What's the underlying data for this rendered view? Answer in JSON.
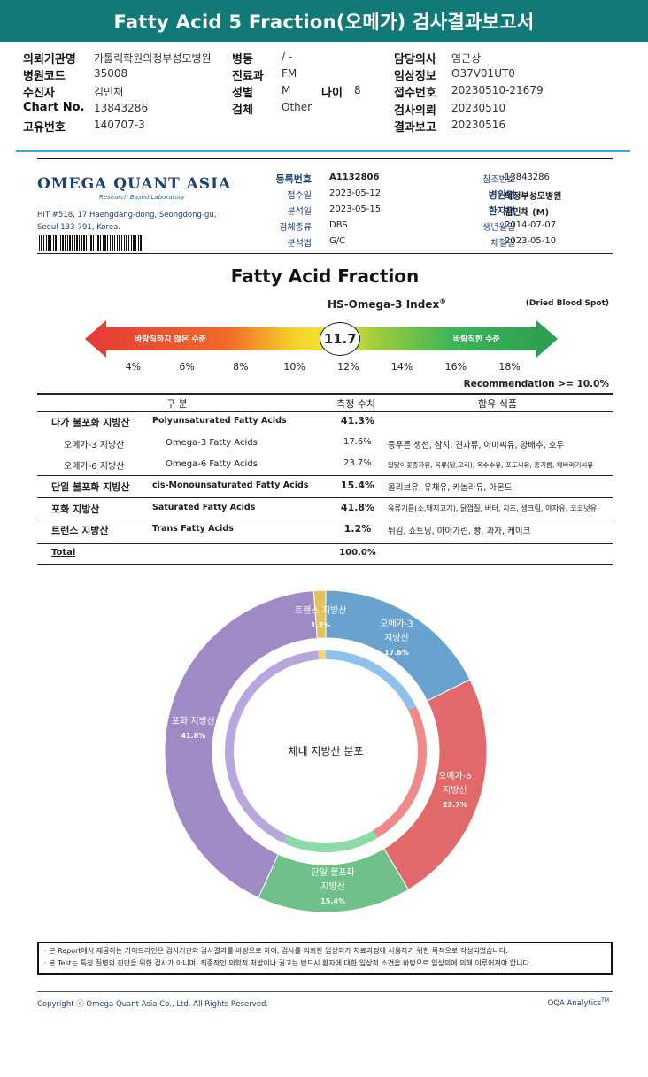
{
  "title": "Fatty Acid 5 Fraction(오메가) 검사결과보고서",
  "patient": {
    "row1": [
      {
        "label": "의뢰기관명",
        "value": "가톨릭학원의정부성모병원"
      },
      {
        "label": "병동",
        "value": "/ -"
      },
      {
        "label": "담당의사",
        "value": "염근상"
      }
    ],
    "row2": [
      {
        "label": "병원코드",
        "value": "35008"
      },
      {
        "label": "진료과",
        "value": "FM"
      },
      {
        "label": "임상정보",
        "value": "O37V01UT0"
      }
    ],
    "row3": [
      {
        "label": "수진자",
        "value": "김민채"
      },
      {
        "label": "성별",
        "value": "M"
      },
      {
        "label": "나이",
        "value": "8"
      },
      {
        "label": "접수번호",
        "value": "20230510-21679"
      }
    ],
    "row4": [
      {
        "label": "Chart No.",
        "value": "13843286"
      },
      {
        "label": "검체",
        "value": "Other"
      },
      {
        "label": "검사의뢰",
        "value": "20230510"
      }
    ],
    "row5": [
      {
        "label": "고유번호",
        "value": "140707-3"
      },
      {
        "label": "결과보고",
        "value": "20230516"
      }
    ]
  },
  "lab": {
    "logo_main": "OMEGA QUANT ASIA",
    "logo_sub": "Research Based Laboratory",
    "address_line1": "HIT #518, 17 Haengdang-dong, Seongdong-gu,",
    "address_line2": "Seoul 133-791, Korea."
  },
  "report_info": {
    "left": [
      {
        "label": "등록번호",
        "value": "A1132806",
        "bold": true
      },
      {
        "label": "접수일",
        "value": "2023-05-12"
      },
      {
        "label": "분석일",
        "value": "2023-05-15"
      },
      {
        "label": "검체종류",
        "value": "DBS"
      },
      {
        "label": "분석법",
        "value": "G/C"
      }
    ],
    "right": [
      {
        "label": "참조번호",
        "value": "13843286"
      },
      {
        "label": "병원명",
        "value": "의정부성모병원",
        "bold": true
      },
      {
        "label": "환자명",
        "value": "김민채 (M)",
        "bold": true
      },
      {
        "label": "생년월일",
        "value": "2014-07-07"
      },
      {
        "label": "채혈일",
        "value": "2023-05-10"
      }
    ]
  },
  "fraction_title": "Fatty Acid Fraction",
  "index_title": "HS-Omega-3 Index",
  "index_reg": "®",
  "sample_type_note": "(Dried Blood Spot)",
  "scale": {
    "bad_label": "바람직하지 않은 수준",
    "good_label": "바람직한 수준",
    "value": 11.7,
    "value_text": "11.7",
    "min": 3,
    "max": 19,
    "ticks": [
      "4%",
      "6%",
      "8%",
      "10%",
      "12%",
      "14%",
      "16%",
      "18%"
    ],
    "tick_values": [
      4,
      6,
      8,
      10,
      12,
      14,
      16,
      18
    ]
  },
  "recommendation": "Recommendation  >= 10.0%",
  "table": {
    "headers": [
      "구 분",
      "측정 수치",
      "함유 식품"
    ],
    "rows": [
      {
        "kr": "다가 불포화 지방산",
        "en": "Polyunsaturated Fatty Acids",
        "value": "41.3%",
        "food": "",
        "main": true
      },
      {
        "kr": "오메가-3 지방산",
        "en": "Omega-3 Fatty Acids",
        "value": "17.6%",
        "food": "등푸른 생선, 참치, 견과류, 아마씨유, 양배추, 호두",
        "main": false
      },
      {
        "kr": "오메가-6 지방산",
        "en": "Omega-6 Fatty Acids",
        "value": "23.7%",
        "food": "달맞이꽃종자유, 육류(닭,오리), 옥수수유, 포도씨유, 홍기름, 해바라기씨유",
        "main": false,
        "smallfood": true
      },
      {
        "kr": "단일 불포화 지방산",
        "en": "cis-Monounsaturated Fatty Acids",
        "value": "15.4%",
        "food": "올리브유, 유채유, 카놀라유, 아몬드",
        "main": true
      },
      {
        "kr": "포화 지방산",
        "en": "Saturated Fatty Acids",
        "value": "41.8%",
        "food": "육류기름(소,돼지고기), 닭껍질, 버터, 치즈, 생크림, 야자유, 코코넛유",
        "main": true,
        "midfood": true
      },
      {
        "kr": "트랜스 지방산",
        "en": "Trans Fatty Acids",
        "value": "1.2%",
        "food": "튀김, 쇼트닝, 마아가린, 빵, 과자, 케이크",
        "main": true
      }
    ],
    "total_label": "Total",
    "total_value": "100.0%"
  },
  "chart_data": {
    "type": "pie",
    "center_label": "체내 지방산 분포",
    "outer": [
      {
        "label_l1": "오메가-3",
        "label_l2": "지방산",
        "value": 17.6,
        "pct": "17.6%",
        "color": "#6aa2cf"
      },
      {
        "label_l1": "오메가-6",
        "label_l2": "지방산",
        "value": 23.7,
        "pct": "23.7%",
        "color": "#e2696a"
      },
      {
        "label_l1": "단일 불포화",
        "label_l2": "지방산",
        "value": 15.4,
        "pct": "15.4%",
        "color": "#6fc08a"
      },
      {
        "label_l1": "포화 지방산",
        "label_l2": "",
        "value": 41.8,
        "pct": "41.8%",
        "color": "#a08ac6"
      },
      {
        "label_l1": "트랜스 지방산",
        "label_l2": "",
        "value": 1.2,
        "pct": "1.2%",
        "color": "#e6c25a"
      }
    ],
    "inner": [
      {
        "value": 17.6,
        "color": "#8ec2ea"
      },
      {
        "value": 23.7,
        "color": "#f08a8a"
      },
      {
        "value": 15.4,
        "color": "#8ddaa9"
      },
      {
        "value": 41.8,
        "color": "#b8a6de"
      },
      {
        "value": 1.2,
        "color": "#f0d482"
      }
    ]
  },
  "disclaimer": {
    "line1": "· 본 Report에서 제공하는 가이드라인은 검사기관의 검사결과를 바탕으로 하여, 검사를 의뢰한 임상의가 치료과정에 사용하기 위한 목적으로 작성되었습니다.",
    "line2": "· 본 Test는 특정 질병의 진단을 위한 검사가 아니며, 최종적인 의학적 처방이나 권고는 반드시 환자에 대한 임상적 소견을 바탕으로 임상의에 의해 이루어져야 합니다."
  },
  "footer": {
    "copyright": "Copyright ⓒ Omega Quant Asia Co., Ltd.  All Rights Reserved.",
    "brand": "OQA Analytics",
    "tm": "TM"
  }
}
